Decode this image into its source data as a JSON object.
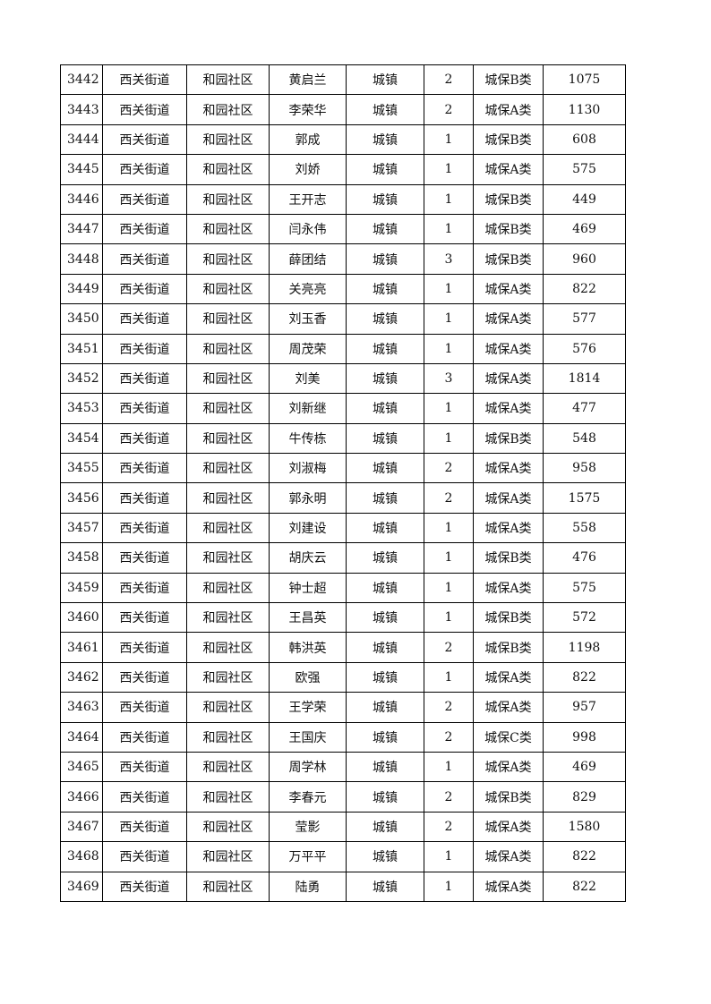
{
  "table": {
    "rows": [
      [
        "3442",
        "西关街道",
        "和园社区",
        "黄启兰",
        "城镇",
        "2",
        "城保B类",
        "1075"
      ],
      [
        "3443",
        "西关街道",
        "和园社区",
        "李荣华",
        "城镇",
        "2",
        "城保A类",
        "1130"
      ],
      [
        "3444",
        "西关街道",
        "和园社区",
        "郭成",
        "城镇",
        "1",
        "城保B类",
        "608"
      ],
      [
        "3445",
        "西关街道",
        "和园社区",
        "刘娇",
        "城镇",
        "1",
        "城保A类",
        "575"
      ],
      [
        "3446",
        "西关街道",
        "和园社区",
        "王开志",
        "城镇",
        "1",
        "城保B类",
        "449"
      ],
      [
        "3447",
        "西关街道",
        "和园社区",
        "闫永伟",
        "城镇",
        "1",
        "城保B类",
        "469"
      ],
      [
        "3448",
        "西关街道",
        "和园社区",
        "薛团结",
        "城镇",
        "3",
        "城保B类",
        "960"
      ],
      [
        "3449",
        "西关街道",
        "和园社区",
        "关亮亮",
        "城镇",
        "1",
        "城保A类",
        "822"
      ],
      [
        "3450",
        "西关街道",
        "和园社区",
        "刘玉香",
        "城镇",
        "1",
        "城保A类",
        "577"
      ],
      [
        "3451",
        "西关街道",
        "和园社区",
        "周茂荣",
        "城镇",
        "1",
        "城保A类",
        "576"
      ],
      [
        "3452",
        "西关街道",
        "和园社区",
        "刘美",
        "城镇",
        "3",
        "城保A类",
        "1814"
      ],
      [
        "3453",
        "西关街道",
        "和园社区",
        "刘新继",
        "城镇",
        "1",
        "城保A类",
        "477"
      ],
      [
        "3454",
        "西关街道",
        "和园社区",
        "牛传栋",
        "城镇",
        "1",
        "城保B类",
        "548"
      ],
      [
        "3455",
        "西关街道",
        "和园社区",
        "刘淑梅",
        "城镇",
        "2",
        "城保A类",
        "958"
      ],
      [
        "3456",
        "西关街道",
        "和园社区",
        "郭永明",
        "城镇",
        "2",
        "城保A类",
        "1575"
      ],
      [
        "3457",
        "西关街道",
        "和园社区",
        "刘建设",
        "城镇",
        "1",
        "城保A类",
        "558"
      ],
      [
        "3458",
        "西关街道",
        "和园社区",
        "胡庆云",
        "城镇",
        "1",
        "城保B类",
        "476"
      ],
      [
        "3459",
        "西关街道",
        "和园社区",
        "钟士超",
        "城镇",
        "1",
        "城保A类",
        "575"
      ],
      [
        "3460",
        "西关街道",
        "和园社区",
        "王昌英",
        "城镇",
        "1",
        "城保B类",
        "572"
      ],
      [
        "3461",
        "西关街道",
        "和园社区",
        "韩洪英",
        "城镇",
        "2",
        "城保B类",
        "1198"
      ],
      [
        "3462",
        "西关街道",
        "和园社区",
        "欧强",
        "城镇",
        "1",
        "城保A类",
        "822"
      ],
      [
        "3463",
        "西关街道",
        "和园社区",
        "王学荣",
        "城镇",
        "2",
        "城保A类",
        "957"
      ],
      [
        "3464",
        "西关街道",
        "和园社区",
        "王国庆",
        "城镇",
        "2",
        "城保C类",
        "998"
      ],
      [
        "3465",
        "西关街道",
        "和园社区",
        "周学林",
        "城镇",
        "1",
        "城保A类",
        "469"
      ],
      [
        "3466",
        "西关街道",
        "和园社区",
        "李春元",
        "城镇",
        "2",
        "城保B类",
        "829"
      ],
      [
        "3467",
        "西关街道",
        "和园社区",
        "莹影",
        "城镇",
        "2",
        "城保A类",
        "1580"
      ],
      [
        "3468",
        "西关街道",
        "和园社区",
        "万平平",
        "城镇",
        "1",
        "城保A类",
        "822"
      ],
      [
        "3469",
        "西关街道",
        "和园社区",
        "陆勇",
        "城镇",
        "1",
        "城保A类",
        "822"
      ]
    ]
  }
}
